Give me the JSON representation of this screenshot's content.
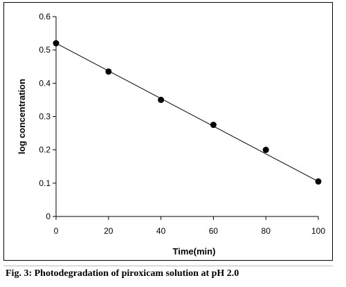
{
  "caption": "Fig. 3: Photodegradation of piroxicam solution at pH 2.0",
  "colors": {
    "marker": "#000000",
    "line": "#000000",
    "axis": "#000000"
  },
  "chart_data": {
    "type": "scatter",
    "xlabel": "Time(min)",
    "ylabel": "log concentration",
    "xlim": [
      0,
      100
    ],
    "ylim": [
      0,
      0.6
    ],
    "x_ticks": [
      0,
      20,
      40,
      60,
      80,
      100
    ],
    "y_ticks": [
      0,
      0.1,
      0.2,
      0.3,
      0.4,
      0.5,
      0.6
    ],
    "x_tick_labels": [
      "0",
      "20",
      "40",
      "60",
      "80",
      "100"
    ],
    "y_tick_labels": [
      "0",
      "0.1",
      "0.2",
      "0.3",
      "0.4",
      "0.5",
      "0.6"
    ],
    "grid": false,
    "series": [
      {
        "x": [
          0,
          20,
          40,
          60,
          80,
          100
        ],
        "y": [
          0.52,
          0.435,
          0.35,
          0.275,
          0.2,
          0.105
        ]
      }
    ],
    "trendline": {
      "x": [
        0,
        100
      ],
      "y": [
        0.52,
        0.105
      ]
    }
  }
}
